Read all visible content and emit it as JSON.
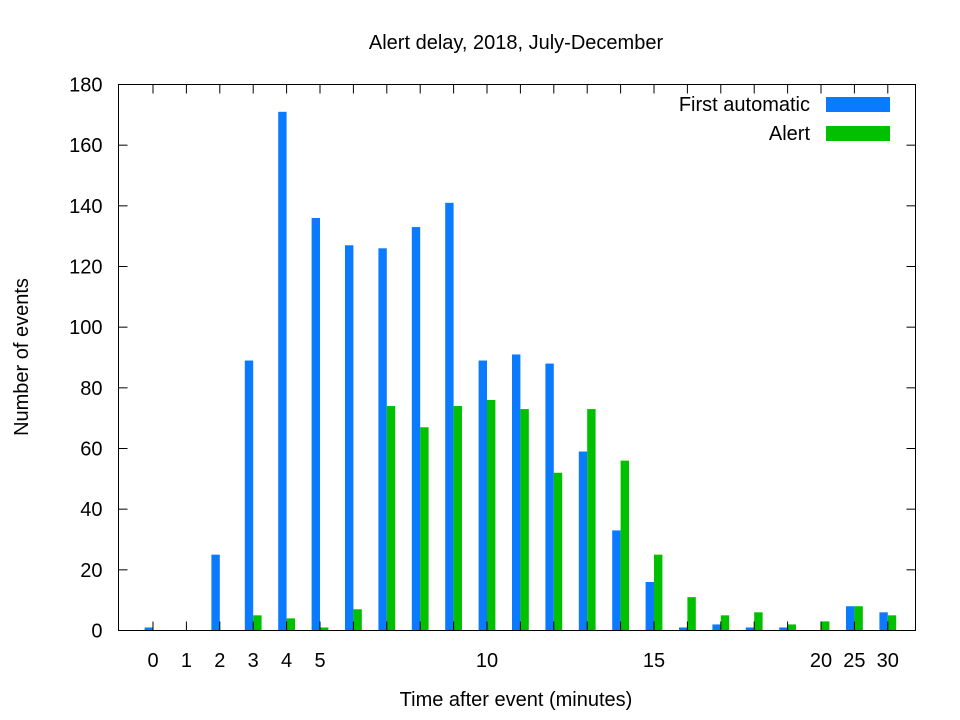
{
  "chart_data": {
    "type": "bar",
    "title": "Alert delay, 2018, July-December",
    "xlabel": "Time after event (minutes)",
    "ylabel": "Number of events",
    "ylim": [
      0,
      180
    ],
    "yticks": [
      0,
      20,
      40,
      60,
      80,
      100,
      120,
      140,
      160,
      180
    ],
    "categories": [
      "0",
      "1",
      "2",
      "3",
      "4",
      "5",
      "6",
      "7",
      "8",
      "9",
      "10",
      "11",
      "12",
      "13",
      "14",
      "15",
      "16",
      "17",
      "18",
      "19",
      "20",
      "25",
      "30"
    ],
    "x_tick_labels": [
      {
        "category": "0",
        "label": "0"
      },
      {
        "category": "1",
        "label": "1"
      },
      {
        "category": "2",
        "label": "2"
      },
      {
        "category": "3",
        "label": "3"
      },
      {
        "category": "4",
        "label": "4"
      },
      {
        "category": "5",
        "label": "5"
      },
      {
        "category": "10",
        "label": "10"
      },
      {
        "category": "15",
        "label": "15"
      },
      {
        "category": "20",
        "label": "20"
      },
      {
        "category": "25",
        "label": "25"
      },
      {
        "category": "30",
        "label": "30"
      }
    ],
    "series": [
      {
        "name": "First automatic",
        "color": "#0a7bff",
        "values": [
          1,
          0,
          25,
          89,
          171,
          136,
          127,
          126,
          133,
          141,
          89,
          91,
          88,
          59,
          33,
          16,
          1,
          2,
          1,
          1,
          0,
          8,
          6
        ]
      },
      {
        "name": "Alert",
        "color": "#00c000",
        "values": [
          0,
          0,
          0,
          5,
          4,
          1,
          7,
          74,
          67,
          74,
          76,
          73,
          52,
          73,
          56,
          25,
          11,
          5,
          6,
          2,
          3,
          8,
          5
        ]
      }
    ],
    "legend_position": "top-right",
    "grid": false
  }
}
